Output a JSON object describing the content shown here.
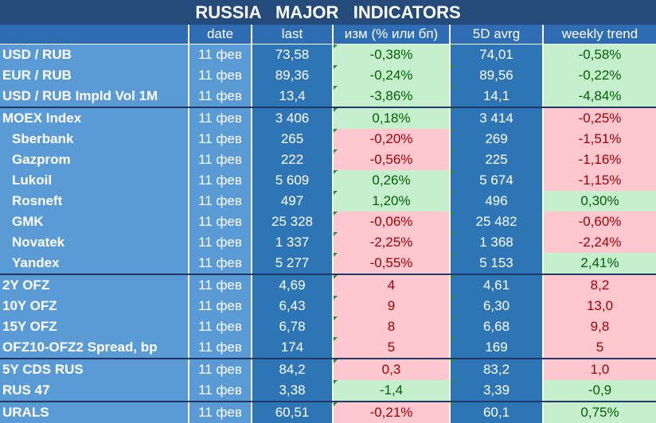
{
  "title": "RUSSIA   MAJOR   INDICATORS",
  "columns": {
    "name": "",
    "date": "date",
    "last": "last",
    "change": "изм (% или бп)",
    "avg5d": "5D avrg",
    "weekly": "weekly trend"
  },
  "colors": {
    "title_bg": "#244b7a",
    "header_bg": "#2e6db3",
    "positive_bg": "#c6efce",
    "positive_text": "#006100",
    "negative_bg": "#ffc7ce",
    "negative_text": "#9c0006"
  },
  "rows": [
    {
      "name": "USD / RUB",
      "date": "11 фев",
      "last": "73,58",
      "change": "-0,38%",
      "avg5d": "74,01",
      "weekly": "-0,58%",
      "change_sign": "pos",
      "weekly_sign": "pos",
      "indent": false,
      "group": 0
    },
    {
      "name": "EUR / RUB",
      "date": "11 фев",
      "last": "89,36",
      "change": "-0,24%",
      "avg5d": "89,56",
      "weekly": "-0,22%",
      "change_sign": "pos",
      "weekly_sign": "pos",
      "indent": false,
      "group": 0
    },
    {
      "name": "USD / RUB Impld Vol 1M",
      "date": "11 фев",
      "last": "13,4",
      "change": "-3,86%",
      "avg5d": "14,1",
      "weekly": "-4,84%",
      "change_sign": "pos",
      "weekly_sign": "pos",
      "indent": false,
      "group": 0
    },
    {
      "name": "MOEX Index",
      "date": "11 фев",
      "last": "3 406",
      "change": "0,18%",
      "avg5d": "3 414",
      "weekly": "-0,25%",
      "change_sign": "pos",
      "weekly_sign": "neg",
      "indent": false,
      "group": 1
    },
    {
      "name": "Sberbank",
      "date": "11 фев",
      "last": "265",
      "change": "-0,20%",
      "avg5d": "269",
      "weekly": "-1,51%",
      "change_sign": "neg",
      "weekly_sign": "neg",
      "indent": true,
      "group": 1
    },
    {
      "name": "Gazprom",
      "date": "11 фев",
      "last": "222",
      "change": "-0,56%",
      "avg5d": "225",
      "weekly": "-1,16%",
      "change_sign": "neg",
      "weekly_sign": "neg",
      "indent": true,
      "group": 1
    },
    {
      "name": "Lukoil",
      "date": "11 фев",
      "last": "5 609",
      "change": "0,26%",
      "avg5d": "5 674",
      "weekly": "-1,15%",
      "change_sign": "pos",
      "weekly_sign": "neg",
      "indent": true,
      "group": 1
    },
    {
      "name": "Rosneft",
      "date": "11 фев",
      "last": "497",
      "change": "1,20%",
      "avg5d": "496",
      "weekly": "0,30%",
      "change_sign": "pos",
      "weekly_sign": "pos",
      "indent": true,
      "group": 1
    },
    {
      "name": "GMK",
      "date": "11 фев",
      "last": "25 328",
      "change": "-0,06%",
      "avg5d": "25 482",
      "weekly": "-0,60%",
      "change_sign": "neg",
      "weekly_sign": "neg",
      "indent": true,
      "group": 1
    },
    {
      "name": "Novatek",
      "date": "11 фев",
      "last": "1 337",
      "change": "-2,25%",
      "avg5d": "1 368",
      "weekly": "-2,24%",
      "change_sign": "neg",
      "weekly_sign": "neg",
      "indent": true,
      "group": 1
    },
    {
      "name": "Yandex",
      "date": "11 фев",
      "last": "5 277",
      "change": "-0,55%",
      "avg5d": "5 153",
      "weekly": "2,41%",
      "change_sign": "neg",
      "weekly_sign": "pos",
      "indent": true,
      "group": 1
    },
    {
      "name": "2Y OFZ",
      "date": "11 фев",
      "last": "4,69",
      "change": "4",
      "avg5d": "4,61",
      "weekly": "8,2",
      "change_sign": "neg",
      "weekly_sign": "neg",
      "indent": false,
      "group": 2
    },
    {
      "name": "10Y OFZ",
      "date": "11 фев",
      "last": "6,43",
      "change": "9",
      "avg5d": "6,30",
      "weekly": "13,0",
      "change_sign": "neg",
      "weekly_sign": "neg",
      "indent": false,
      "group": 2
    },
    {
      "name": "15Y OFZ",
      "date": "11 фев",
      "last": "6,78",
      "change": "8",
      "avg5d": "6,68",
      "weekly": "9,8",
      "change_sign": "neg",
      "weekly_sign": "neg",
      "indent": false,
      "group": 2
    },
    {
      "name": "OFZ10-OFZ2 Spread, bp",
      "date": "11 фев",
      "last": "174",
      "change": "5",
      "avg5d": "169",
      "weekly": "5",
      "change_sign": "neg",
      "weekly_sign": "neg",
      "indent": false,
      "group": 2
    },
    {
      "name": "5Y CDS RUS",
      "date": "11 фев",
      "last": "84,2",
      "change": "0,3",
      "avg5d": "83,2",
      "weekly": "1,0",
      "change_sign": "neg",
      "weekly_sign": "neg",
      "indent": false,
      "group": 3
    },
    {
      "name": "RUS 47",
      "date": "11 фев",
      "last": "3,38",
      "change": "-1,4",
      "avg5d": "3,39",
      "weekly": "-0,9",
      "change_sign": "pos",
      "weekly_sign": "pos",
      "indent": false,
      "group": 3
    },
    {
      "name": "URALS",
      "date": "11 фев",
      "last": "60,51",
      "change": "-0,21%",
      "avg5d": "60,1",
      "weekly": "0,75%",
      "change_sign": "neg",
      "weekly_sign": "pos",
      "indent": false,
      "group": 4
    }
  ]
}
